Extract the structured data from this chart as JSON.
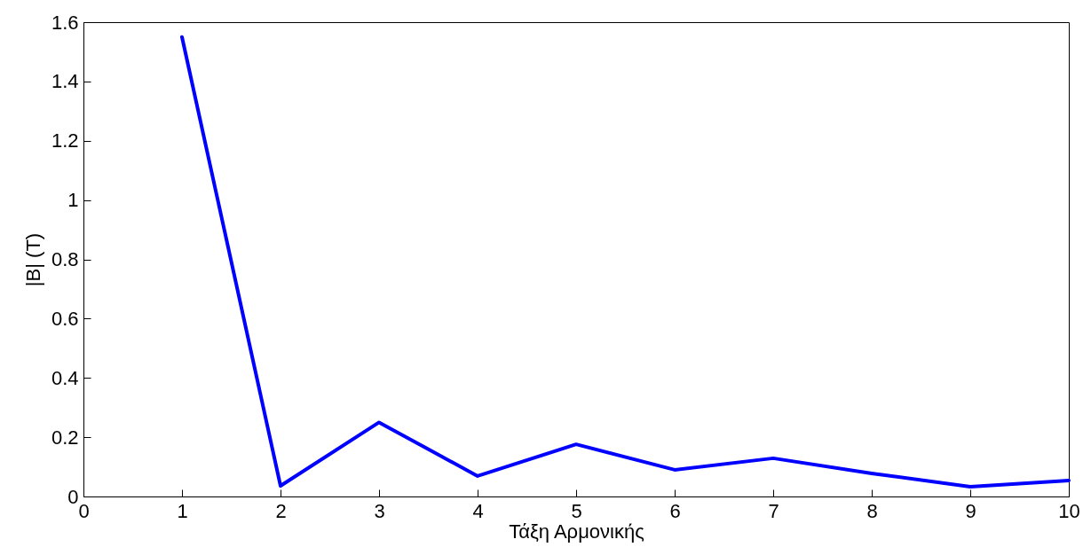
{
  "chart_data": {
    "type": "line",
    "xlabel": "Τάξη Αρμονικής",
    "ylabel": "|B|  (T)",
    "x": [
      1,
      2,
      3,
      4,
      5,
      6,
      7,
      8,
      9,
      10
    ],
    "series": [
      {
        "color": "#0000ff",
        "values": [
          1.55,
          0.036,
          0.25,
          0.069,
          0.176,
          0.09,
          0.129,
          0.078,
          0.033,
          0.054
        ]
      }
    ],
    "xlim": [
      0,
      10
    ],
    "xticks": [
      0,
      1,
      2,
      3,
      4,
      5,
      6,
      7,
      8,
      9,
      10
    ],
    "ylim": [
      0,
      1.6
    ],
    "yticks": [
      0,
      0.2,
      0.4,
      0.6,
      0.8,
      1,
      1.2,
      1.4,
      1.6
    ],
    "grid": false,
    "marker": "none",
    "line_style": "solid"
  }
}
